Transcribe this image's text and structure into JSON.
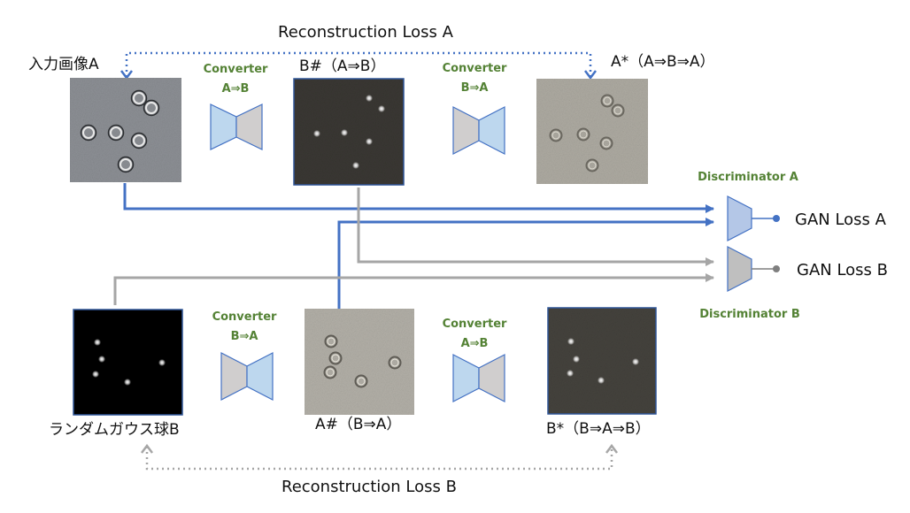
{
  "images": {
    "input_a": "入力画像A",
    "b_hash": "B#（A⇒B）",
    "a_star": "A*（A⇒B⇒A）",
    "random_b": "ランダムガウス球B",
    "a_hash": "A#（B⇒A）",
    "b_star": "B*（B⇒A⇒B）"
  },
  "converters": {
    "top_left": {
      "title": "Converter",
      "dir": "A⇒B"
    },
    "top_right": {
      "title": "Converter",
      "dir": "B⇒A"
    },
    "bottom_left": {
      "title": "Converter",
      "dir": "B⇒A"
    },
    "bottom_right": {
      "title": "Converter",
      "dir": "A⇒B"
    }
  },
  "discriminators": {
    "a": "Discriminator A",
    "b": "Discriminator B"
  },
  "losses": {
    "reconstruction_a": "Reconstruction Loss A",
    "reconstruction_b": "Reconstruction Loss B",
    "gan_a": "GAN Loss A",
    "gan_b": "GAN Loss B"
  },
  "colors": {
    "blue_line": "#4472c4",
    "gray_line": "#a6a6a6",
    "converter_blue": "#bdd7ee",
    "converter_gray": "#d0cece",
    "discriminator_blue": "#b4c7e7",
    "discriminator_gray": "#bfbfbf",
    "converter_text": "#548235"
  }
}
